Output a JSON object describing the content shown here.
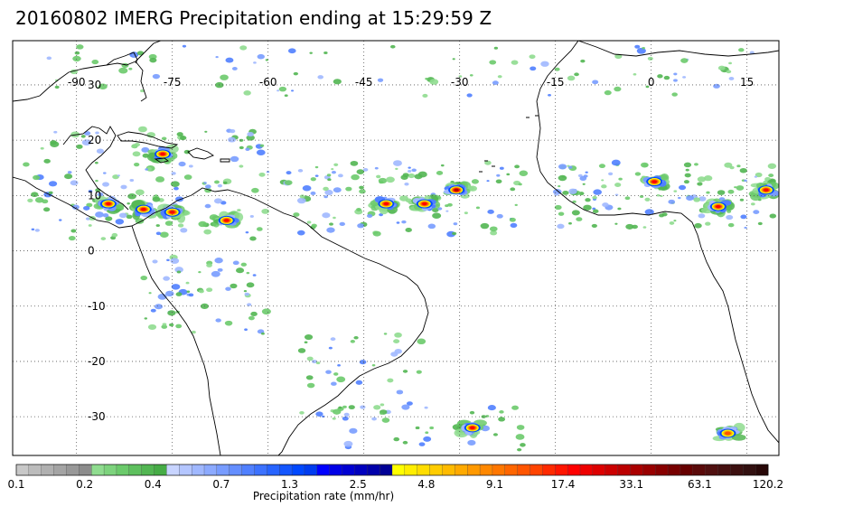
{
  "title": "20160802 IMERG Precipitation ending at 15:29:59 Z",
  "map": {
    "projection": "cylindrical",
    "lon_range": [
      -100,
      20
    ],
    "lat_range": [
      -37,
      38
    ],
    "lon_ticks": [
      -90,
      -75,
      -60,
      -45,
      -30,
      -15,
      0,
      15
    ],
    "lat_ticks": [
      30,
      20,
      10,
      0,
      -10,
      -20,
      -30
    ],
    "grid": "dotted",
    "coastline_color": "#000000",
    "frame_color": "#000000"
  },
  "legend": {
    "label": "Precipitation rate (mm/hr)",
    "tick_labels": [
      "0.1",
      "0.2",
      "0.4",
      "0.7",
      "1.3",
      "2.5",
      "4.8",
      "9.1",
      "17.4",
      "33.1",
      "63.1",
      "120.2"
    ],
    "colors": [
      "#c8c8c8",
      "#bcbcbc",
      "#b0b0b0",
      "#a4a4a4",
      "#989898",
      "#8c8c8c",
      "#8fdc8f",
      "#7dd37d",
      "#6bca6b",
      "#5ec05e",
      "#52b652",
      "#46ac46",
      "#c8d4ff",
      "#b4c6ff",
      "#a0b8ff",
      "#8caaff",
      "#789cff",
      "#648eff",
      "#5080ff",
      "#3c72ff",
      "#2864ff",
      "#1456ff",
      "#0048ff",
      "#003cf0",
      "#0000ff",
      "#0000e6",
      "#0000d2",
      "#0000be",
      "#0000aa",
      "#000096",
      "#ffff00",
      "#ffee00",
      "#ffdd00",
      "#ffcc00",
      "#ffbb00",
      "#ffaa00",
      "#ff9900",
      "#ff8800",
      "#ff7700",
      "#ff6600",
      "#ff5500",
      "#ff4400",
      "#ff2a00",
      "#ff1500",
      "#ff0000",
      "#ee0000",
      "#dd0000",
      "#cc0000",
      "#bb0000",
      "#aa0000",
      "#990000",
      "#880000",
      "#770000",
      "#660000",
      "#5a0a0a",
      "#501010",
      "#461010",
      "#3c1010",
      "#321010",
      "#280808"
    ]
  },
  "precip_systems": [
    {
      "lon": -76.5,
      "lat": 17.5,
      "max_rate": 17.4
    },
    {
      "lon": -85.0,
      "lat": 8.5,
      "max_rate": 33.1
    },
    {
      "lon": -79.5,
      "lat": 7.5,
      "max_rate": 33.1
    },
    {
      "lon": -75.0,
      "lat": 7.0,
      "max_rate": 33.1
    },
    {
      "lon": -66.5,
      "lat": 5.5,
      "max_rate": 33.1
    },
    {
      "lon": -41.5,
      "lat": 8.5,
      "max_rate": 33.1
    },
    {
      "lon": -35.5,
      "lat": 8.5,
      "max_rate": 17.4
    },
    {
      "lon": -30.5,
      "lat": 11.0,
      "max_rate": 63.1
    },
    {
      "lon": 0.5,
      "lat": 12.5,
      "max_rate": 17.4
    },
    {
      "lon": 10.5,
      "lat": 8.0,
      "max_rate": 17.4
    },
    {
      "lon": 18.0,
      "lat": 11.0,
      "max_rate": 33.1
    },
    {
      "lon": -28.0,
      "lat": -32.0,
      "max_rate": 17.4
    },
    {
      "lon": 12.0,
      "lat": -33.0,
      "max_rate": 9.1
    }
  ]
}
